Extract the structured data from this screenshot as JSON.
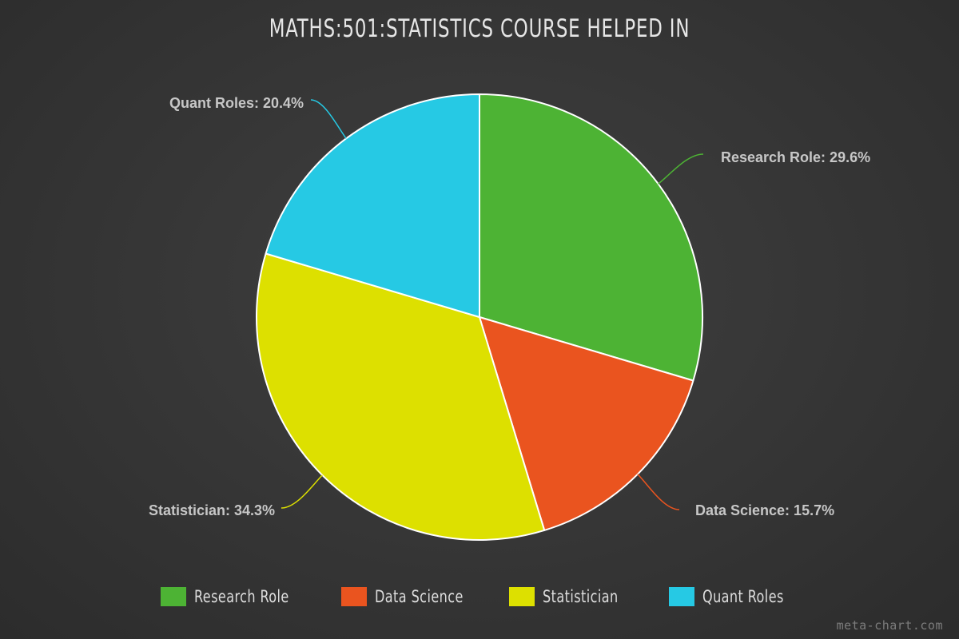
{
  "chart_data": {
    "type": "pie",
    "title": "MATHS:501:STATISTICS COURSE HELPED IN",
    "slices": [
      {
        "label": "Research Role",
        "value": 29.6,
        "display": "Research Role: 29.6%",
        "color": "#4db334"
      },
      {
        "label": "Data Science",
        "value": 15.7,
        "display": "Data Science: 15.7%",
        "color": "#ea541f"
      },
      {
        "label": "Statistician",
        "value": 34.3,
        "display": "Statistician: 34.3%",
        "color": "#dde000"
      },
      {
        "label": "Quant Roles",
        "value": 20.4,
        "display": "Quant Roles: 20.4%",
        "color": "#26c9e4"
      }
    ],
    "legend_position": "bottom"
  },
  "legend": {
    "items": [
      "Research Role",
      "Data Science",
      "Statistician",
      "Quant Roles"
    ]
  },
  "watermark": "meta-chart.com"
}
